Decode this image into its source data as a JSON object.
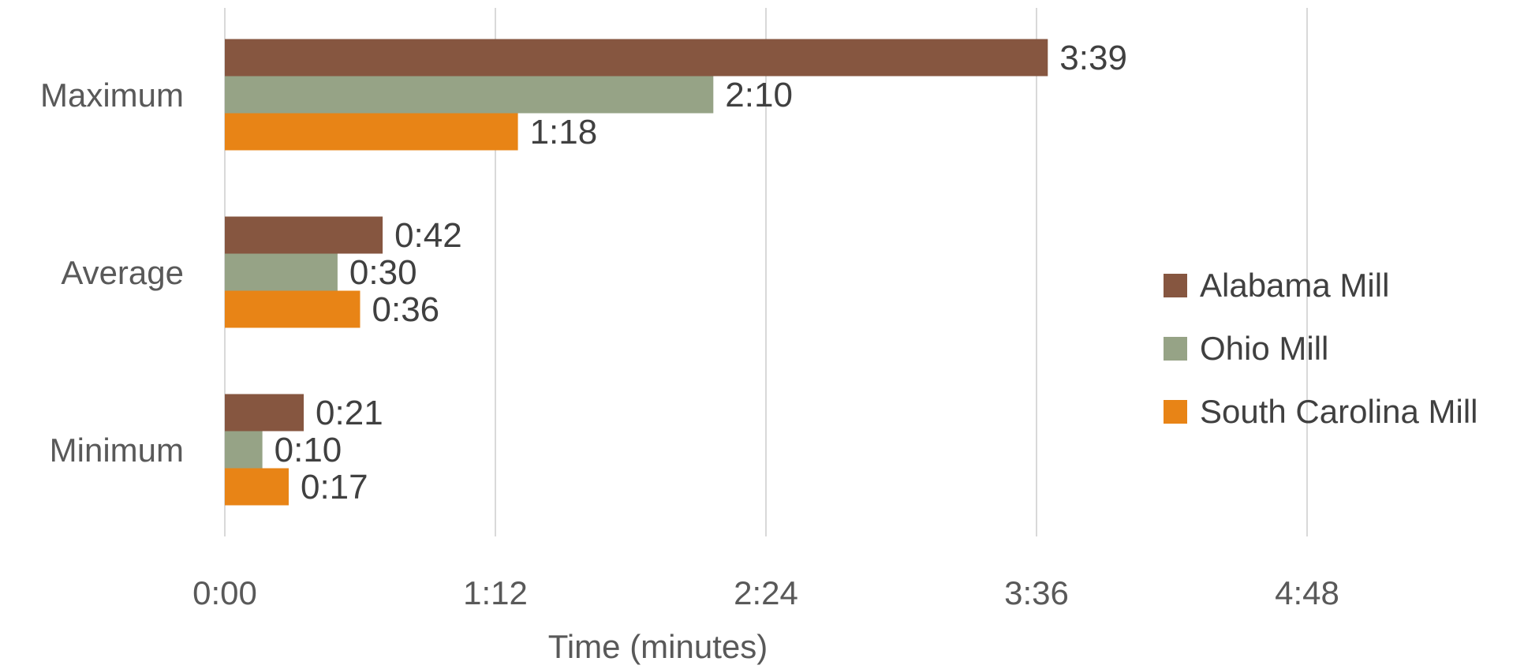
{
  "chart_data": {
    "type": "bar",
    "orientation": "horizontal",
    "title": "",
    "xlabel": "Time (minutes)",
    "ylabel": "",
    "categories": [
      "Maximum",
      "Average",
      "Minimum"
    ],
    "x_unit": "seconds",
    "xlim": [
      0,
      288
    ],
    "x_ticks": [
      0,
      72,
      144,
      216,
      288
    ],
    "x_tick_labels": [
      "0:00",
      "1:12",
      "2:24",
      "3:36",
      "4:48"
    ],
    "grid": "vertical",
    "legend_position": "right",
    "series": [
      {
        "name": "Alabama Mill",
        "color": "#865640",
        "values": [
          219,
          42,
          21
        ],
        "labels": [
          "3:39",
          "0:42",
          "0:21"
        ]
      },
      {
        "name": "Ohio Mill",
        "color": "#96a386",
        "values": [
          130,
          30,
          10
        ],
        "labels": [
          "2:10",
          "0:30",
          "0:10"
        ]
      },
      {
        "name": "South Carolina Mill",
        "color": "#e88416",
        "values": [
          78,
          36,
          17
        ],
        "labels": [
          "1:18",
          "0:36",
          "0:17"
        ]
      }
    ]
  }
}
